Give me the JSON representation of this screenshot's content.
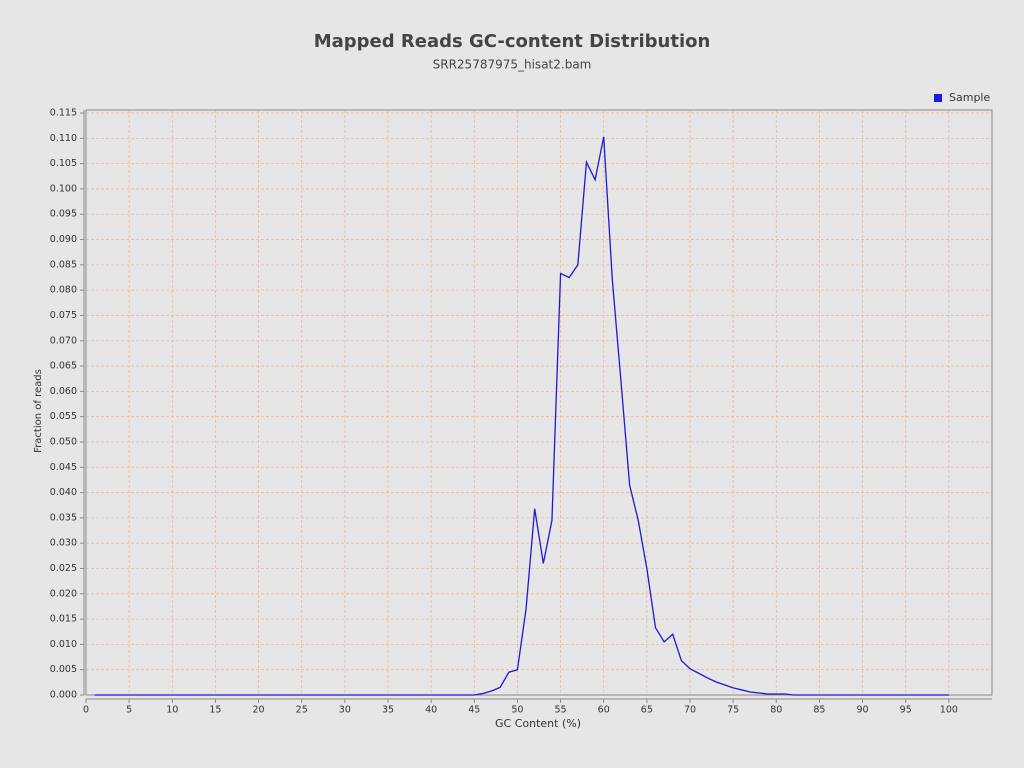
{
  "chart_data": {
    "type": "line",
    "title": "Mapped Reads GC-content Distribution",
    "subtitle": "SRR25787975_hisat2.bam",
    "x_label": "GC Content (%)",
    "y_label": "Fraction of reads",
    "legend": "top-right",
    "grid": true,
    "x": [
      1,
      2,
      3,
      4,
      5,
      6,
      7,
      8,
      9,
      10,
      11,
      12,
      13,
      14,
      15,
      16,
      17,
      18,
      19,
      20,
      21,
      22,
      23,
      24,
      25,
      26,
      27,
      28,
      29,
      30,
      31,
      32,
      33,
      34,
      35,
      36,
      37,
      38,
      39,
      40,
      41,
      42,
      43,
      44,
      45,
      46,
      47,
      48,
      49,
      50,
      51,
      52,
      53,
      54,
      55,
      56,
      57,
      58,
      59,
      60,
      61,
      62,
      63,
      64,
      65,
      66,
      67,
      68,
      69,
      70,
      71,
      72,
      73,
      74,
      75,
      76,
      77,
      78,
      79,
      80,
      81,
      82,
      83,
      84,
      85,
      86,
      87,
      88,
      89,
      90,
      91,
      92,
      93,
      94,
      95,
      96,
      97,
      98,
      99,
      100
    ],
    "series": [
      {
        "name": "Sample",
        "color": "#1a1adb",
        "values": [
          0,
          0,
          0,
          0,
          0,
          0,
          0,
          0,
          0,
          0,
          0,
          0,
          0,
          0,
          0,
          0,
          0,
          0,
          0,
          0,
          0,
          0,
          0,
          0,
          0,
          0,
          0,
          0,
          0,
          0,
          0,
          0,
          0,
          0,
          0,
          0,
          0,
          0,
          0,
          0,
          0,
          0,
          0,
          0,
          0,
          0.0003,
          0.0008,
          0.0015,
          0.0045,
          0.005,
          0.017,
          0.0368,
          0.026,
          0.0345,
          0.0833,
          0.0825,
          0.085,
          0.1053,
          0.1018,
          0.1103,
          0.082,
          0.062,
          0.0415,
          0.0345,
          0.025,
          0.0133,
          0.0105,
          0.012,
          0.0068,
          0.0052,
          0.0043,
          0.0034,
          0.0026,
          0.002,
          0.0014,
          0.001,
          0.0006,
          0.0004,
          0.0002,
          0.0002,
          0.0002,
          0,
          0,
          0,
          0,
          0,
          0,
          0,
          0,
          0,
          0,
          0,
          0,
          0,
          0,
          0,
          0,
          0,
          0,
          0
        ]
      }
    ],
    "xlim": [
      0,
      105
    ],
    "xticks": [
      0,
      5,
      10,
      15,
      20,
      25,
      30,
      35,
      40,
      45,
      50,
      55,
      60,
      65,
      70,
      75,
      80,
      85,
      90,
      95,
      100
    ],
    "ylim": [
      0,
      0.1156
    ],
    "yticks": [
      {
        "value": 0,
        "label": "0.000"
      },
      {
        "value": 0.005,
        "label": "0.005"
      },
      {
        "value": 0.01,
        "label": "0.010"
      },
      {
        "value": 0.015,
        "label": "0.015"
      },
      {
        "value": 0.02,
        "label": "0.020"
      },
      {
        "value": 0.025,
        "label": "0.025"
      },
      {
        "value": 0.03,
        "label": "0.030"
      },
      {
        "value": 0.035,
        "label": "0.035"
      },
      {
        "value": 0.04,
        "label": "0.040"
      },
      {
        "value": 0.045,
        "label": "0.045"
      },
      {
        "value": 0.05,
        "label": "0.050"
      },
      {
        "value": 0.055,
        "label": "0.055"
      },
      {
        "value": 0.06,
        "label": "0.060"
      },
      {
        "value": 0.065,
        "label": "0.065"
      },
      {
        "value": 0.07,
        "label": "0.070"
      },
      {
        "value": 0.075,
        "label": "0.075"
      },
      {
        "value": 0.08,
        "label": "0.080"
      },
      {
        "value": 0.085,
        "label": "0.085"
      },
      {
        "value": 0.09,
        "label": "0.090"
      },
      {
        "value": 0.095,
        "label": "0.095"
      },
      {
        "value": 0.1,
        "label": "0.100"
      },
      {
        "value": 0.105,
        "label": "0.105"
      },
      {
        "value": 0.11,
        "label": "0.110"
      },
      {
        "value": 0.115,
        "label": "0.115"
      }
    ]
  }
}
